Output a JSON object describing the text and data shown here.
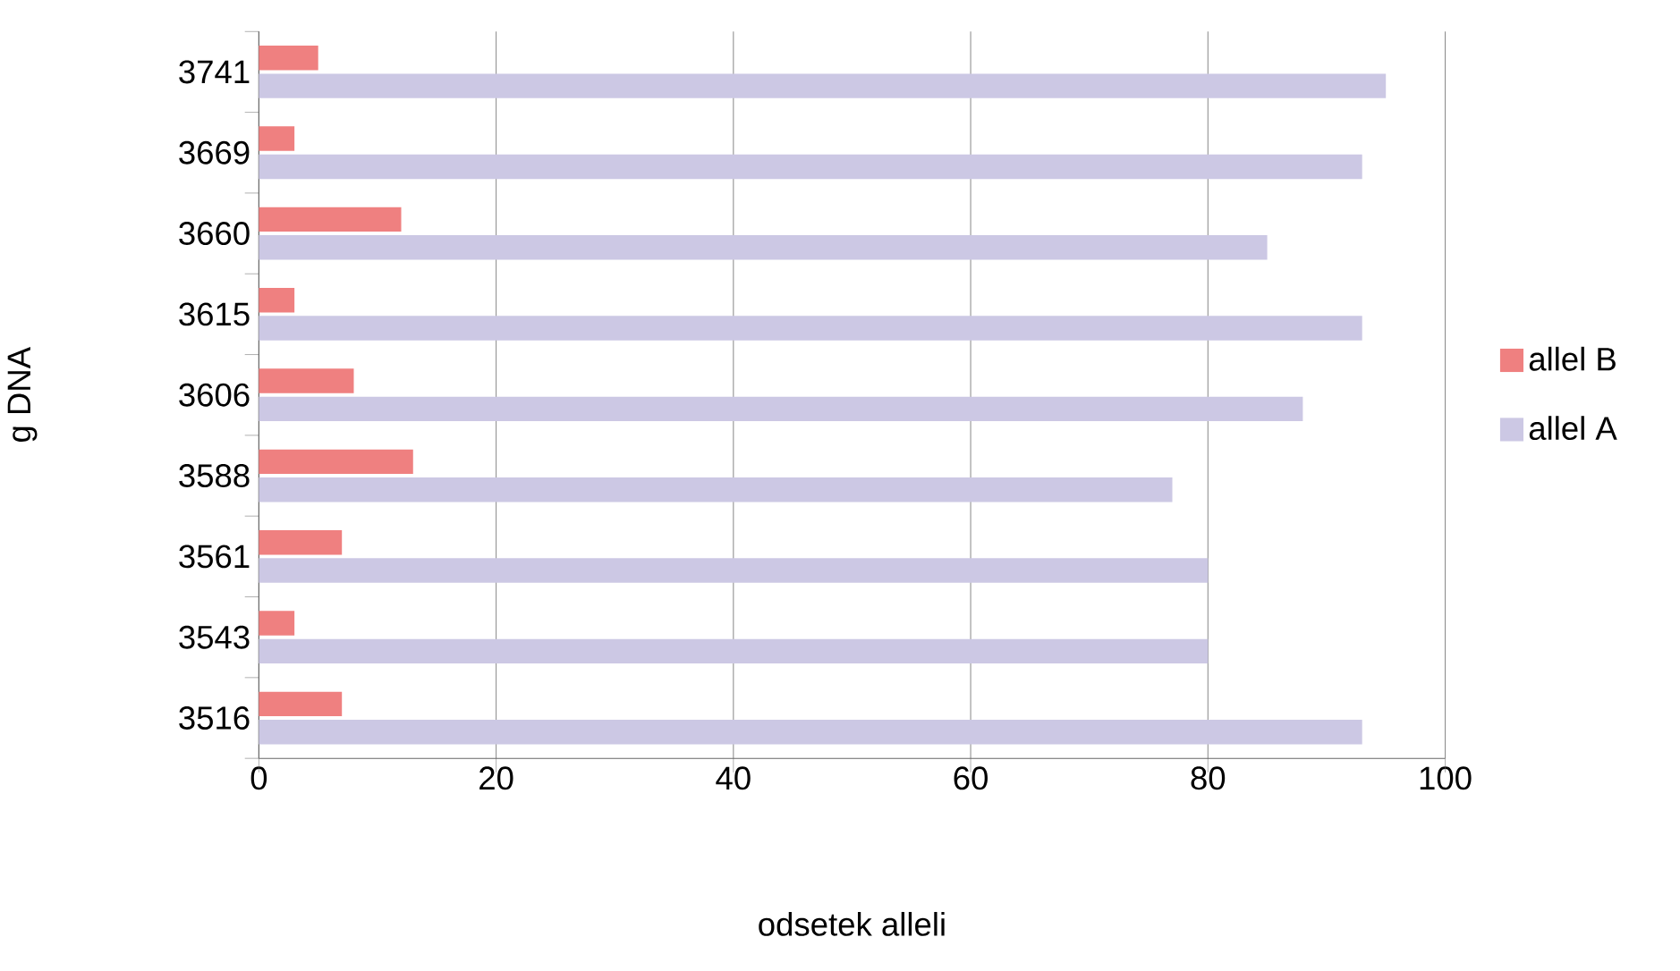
{
  "chart_data": {
    "type": "bar",
    "orientation": "horizontal",
    "xlabel": "odsetek alleli",
    "ylabel": "g DNA",
    "categories": [
      "3741",
      "3669",
      "3660",
      "3615",
      "3606",
      "3588",
      "3561",
      "3543",
      "3516"
    ],
    "series": [
      {
        "name": "allel B",
        "color": "#ef8080",
        "values": [
          5,
          3,
          12,
          3,
          8,
          13,
          7,
          3,
          7
        ]
      },
      {
        "name": "allel A",
        "color": "#ccc8e4",
        "values": [
          95,
          93,
          85,
          93,
          88,
          77,
          80,
          80,
          93
        ]
      }
    ],
    "xlim": [
      0,
      100
    ],
    "xticks": [
      0,
      20,
      40,
      60,
      80,
      100
    ],
    "grid": "x",
    "legend": "right"
  }
}
